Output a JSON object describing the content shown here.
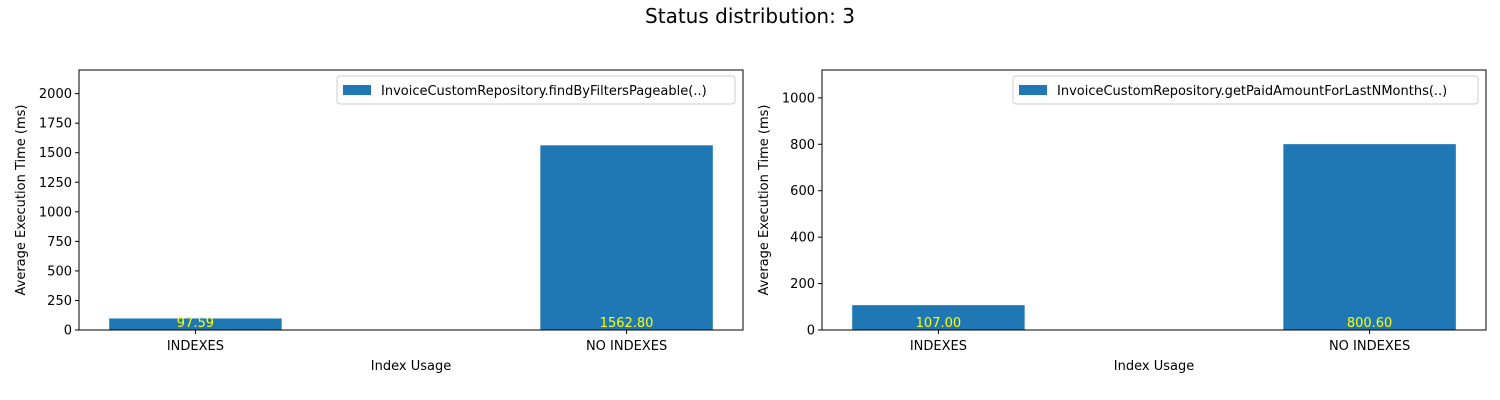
{
  "figure": {
    "suptitle": "Status distribution: 3",
    "bar_color": "#1f77b4",
    "label_color": "#ffff00"
  },
  "chart_data": [
    {
      "type": "bar",
      "categories": [
        "INDEXES",
        "NO INDEXES"
      ],
      "series": [
        {
          "name": "InvoiceCustomRepository.findByFiltersPageable(..)",
          "values": [
            97.59,
            1562.8
          ]
        }
      ],
      "data_labels": [
        "97.59",
        "1562.80"
      ],
      "xlabel": "Index Usage",
      "ylabel": "Average Execution Time (ms)",
      "ylim": [
        0,
        2200
      ],
      "yticks": [
        0,
        250,
        500,
        750,
        1000,
        1250,
        1500,
        1750,
        2000
      ],
      "legend": "top-right",
      "grid": false
    },
    {
      "type": "bar",
      "categories": [
        "INDEXES",
        "NO INDEXES"
      ],
      "series": [
        {
          "name": "InvoiceCustomRepository.getPaidAmountForLastNMonths(..)",
          "values": [
            107.0,
            800.6
          ]
        }
      ],
      "data_labels": [
        "107.00",
        "800.60"
      ],
      "xlabel": "Index Usage",
      "ylabel": "Average Execution Time (ms)",
      "ylim": [
        0,
        1120
      ],
      "yticks": [
        0,
        200,
        400,
        600,
        800,
        1000
      ],
      "legend": "top-right",
      "grid": false
    }
  ]
}
